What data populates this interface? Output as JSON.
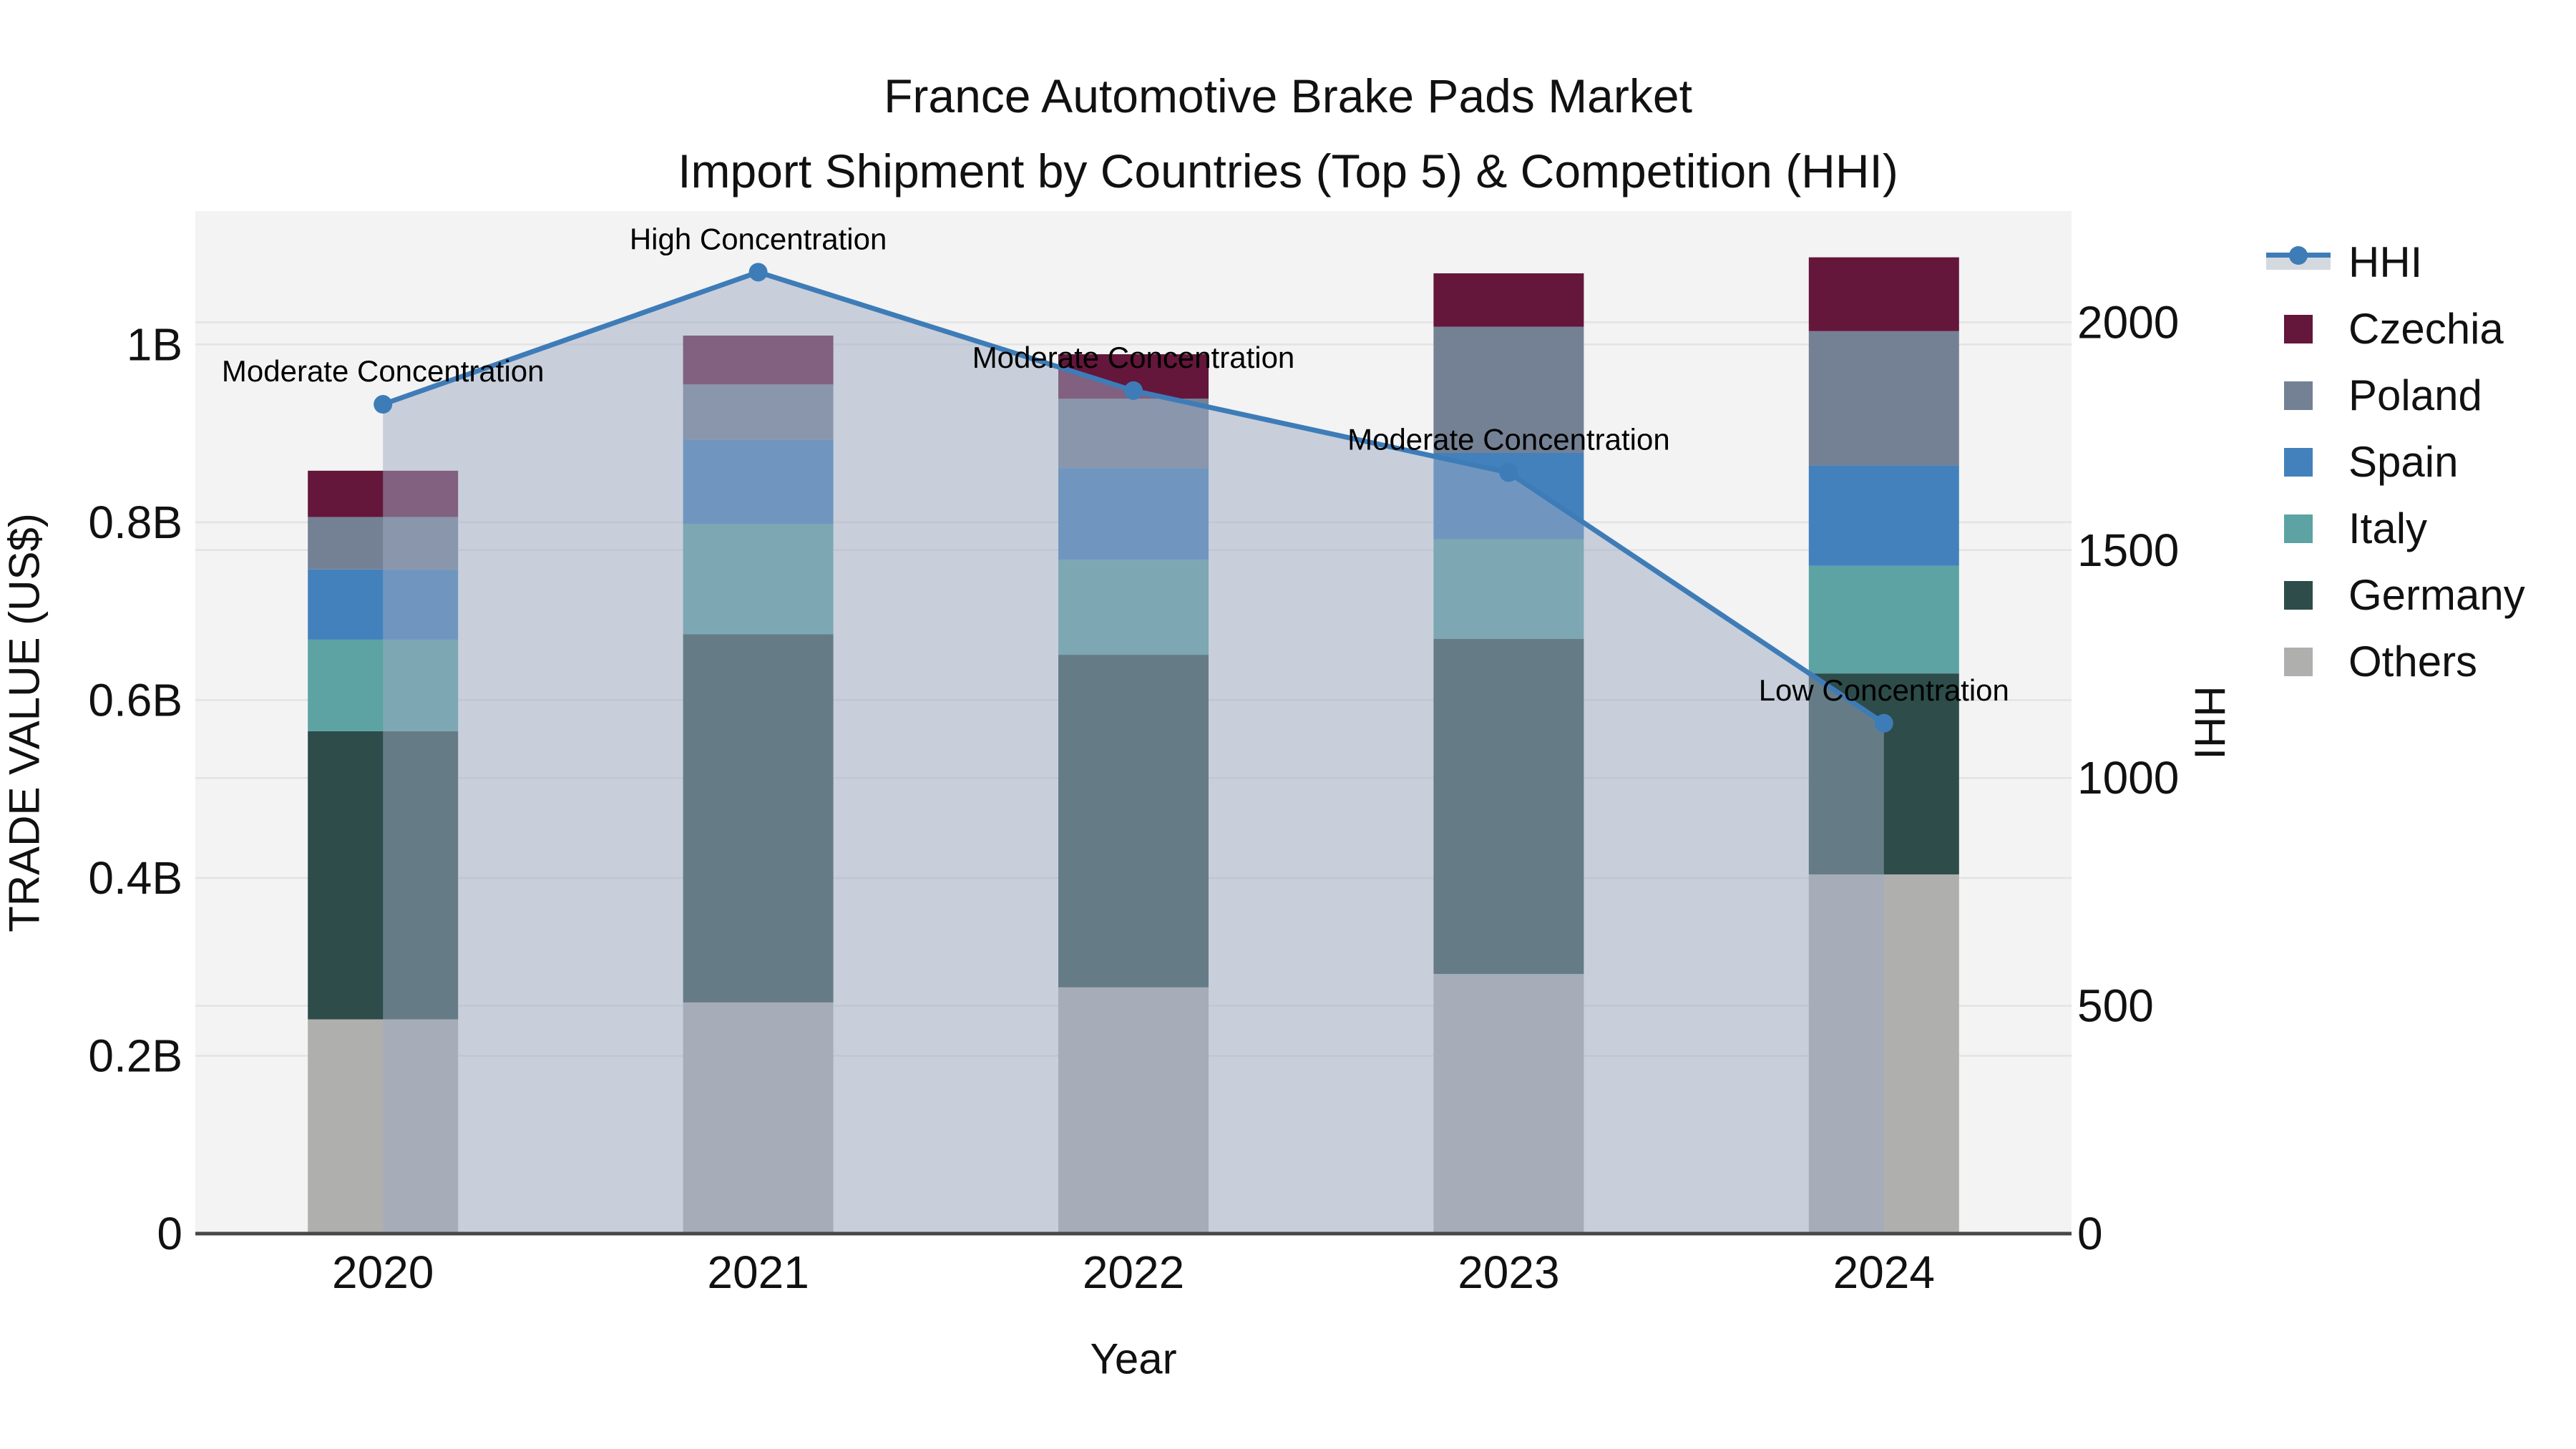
{
  "title": {
    "line1": "France Automotive Brake Pads Market",
    "line2": "Import Shipment by Countries (Top 5) & Competition (HHI)"
  },
  "axes": {
    "x": {
      "title": "Year",
      "ticks": [
        "2020",
        "2021",
        "2022",
        "2023",
        "2024"
      ]
    },
    "y_left": {
      "title": "TRADE VALUE (US$)",
      "ticks": [
        "0",
        "0.2B",
        "0.4B",
        "0.6B",
        "0.8B",
        "1B"
      ],
      "tick_values": [
        0,
        0.2,
        0.4,
        0.6,
        0.8,
        1.0
      ],
      "range": [
        0,
        1.15
      ]
    },
    "y_right": {
      "title": "HHI",
      "ticks": [
        "0",
        "500",
        "1000",
        "1500",
        "2000"
      ],
      "tick_values": [
        0,
        500,
        1000,
        1500,
        2000
      ],
      "range": [
        0,
        2244
      ]
    }
  },
  "legend": [
    {
      "label": "HHI",
      "type": "line",
      "color": "#3E7CB8",
      "fill": "#D4D9E0"
    },
    {
      "label": "Czechia",
      "type": "swatch",
      "color": "#64163B"
    },
    {
      "label": "Poland",
      "type": "swatch",
      "color": "#748194"
    },
    {
      "label": "Spain",
      "type": "swatch",
      "color": "#4381BC"
    },
    {
      "label": "Italy",
      "type": "swatch",
      "color": "#5DA3A3"
    },
    {
      "label": "Germany",
      "type": "swatch",
      "color": "#2D4C4A"
    },
    {
      "label": "Others",
      "type": "swatch",
      "color": "#AFAFAD"
    }
  ],
  "annotations": [
    {
      "category": "2020",
      "text": "Moderate Concentration"
    },
    {
      "category": "2021",
      "text": "High Concentration"
    },
    {
      "category": "2022",
      "text": "Moderate Concentration"
    },
    {
      "category": "2023",
      "text": "Moderate Concentration"
    },
    {
      "category": "2024",
      "text": "Low Concentration"
    }
  ],
  "colors": {
    "plot_background": "#F3F3F3",
    "gridline": "#E3E3E3",
    "axis_line": "#474747",
    "hhi_line": "#3E7CB8",
    "hhi_fill": "rgba(158,172,196,0.5)",
    "text": "#111111"
  },
  "chart_data": {
    "type": "bar+line",
    "title": "France Automotive Brake Pads Market — Import Shipment by Countries (Top 5) & Competition (HHI)",
    "xlabel": "Year",
    "ylabel": "TRADE VALUE (US$)",
    "ylabel_right": "HHI",
    "categories": [
      "2020",
      "2021",
      "2022",
      "2023",
      "2024"
    ],
    "unit": "billions of US$",
    "stacking": "bottom-to-top",
    "ylim_left": [
      0,
      1.15
    ],
    "ylim_right": [
      0,
      2244
    ],
    "grid": true,
    "legend_position": "right",
    "series": [
      {
        "name": "Others",
        "color": "#AFAFAD",
        "values": [
          0.241,
          0.26,
          0.277,
          0.292,
          0.404
        ]
      },
      {
        "name": "Germany",
        "color": "#2D4C4A",
        "values": [
          0.324,
          0.414,
          0.374,
          0.377,
          0.226
        ]
      },
      {
        "name": "Italy",
        "color": "#5DA3A3",
        "values": [
          0.103,
          0.124,
          0.107,
          0.112,
          0.121
        ]
      },
      {
        "name": "Spain",
        "color": "#4381BC",
        "values": [
          0.079,
          0.095,
          0.103,
          0.097,
          0.113
        ]
      },
      {
        "name": "Poland",
        "color": "#748194",
        "values": [
          0.059,
          0.062,
          0.078,
          0.142,
          0.151
        ]
      },
      {
        "name": "Czechia",
        "color": "#64163B",
        "values": [
          0.052,
          0.055,
          0.05,
          0.06,
          0.083
        ]
      }
    ],
    "bar_totals": [
      0.858,
      1.01,
      0.989,
      1.08,
      1.098
    ],
    "line_series": {
      "name": "HHI",
      "axis": "right",
      "color": "#3E7CB8",
      "fill": "tozeroy",
      "values": [
        1820,
        2110,
        1850,
        1670,
        1120
      ]
    }
  }
}
